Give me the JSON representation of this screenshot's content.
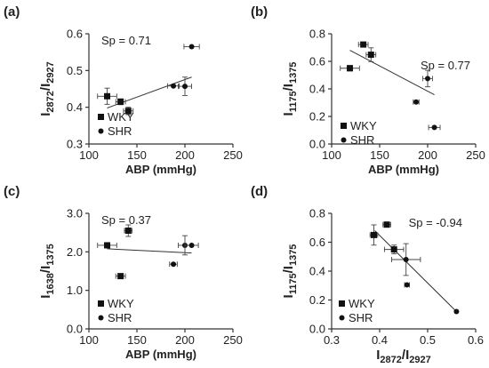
{
  "chart_data": [
    {
      "type": "scatter",
      "panel_label": "(a)",
      "annotation": "Sp = 0.71",
      "xlabel": "ABP (mmHg)",
      "ylabel_main": "I",
      "ylabel_parts": [
        "2872",
        "/I",
        "2927"
      ],
      "xlim": [
        100,
        250
      ],
      "ylim": [
        0.3,
        0.6
      ],
      "xticks": [
        "100",
        "150",
        "200",
        "250"
      ],
      "yticks": [
        "0.3",
        "0.4",
        "0.5",
        "0.6"
      ],
      "xtick_values": [
        100,
        150,
        200,
        250
      ],
      "ytick_values": [
        0.3,
        0.4,
        0.5,
        0.6
      ],
      "legend": [
        "WKY",
        "SHR"
      ],
      "series": [
        {
          "name": "WKY",
          "marker": "square",
          "points": [
            {
              "x": 119,
              "y": 0.43,
              "xerr": 10,
              "yerr": 0.022
            },
            {
              "x": 133,
              "y": 0.415,
              "xerr": 5,
              "yerr": 0.008
            },
            {
              "x": 141,
              "y": 0.39,
              "xerr": 5,
              "yerr": 0.01
            }
          ]
        },
        {
          "name": "SHR",
          "marker": "circle",
          "points": [
            {
              "x": 188,
              "y": 0.458,
              "xerr": 6,
              "yerr": 0
            },
            {
              "x": 200,
              "y": 0.457,
              "xerr": 7,
              "yerr": 0.025
            },
            {
              "x": 207,
              "y": 0.565,
              "xerr": 8,
              "yerr": 0
            }
          ]
        }
      ],
      "trend": [
        [
          119,
          0.398
        ],
        [
          207,
          0.482
        ]
      ]
    },
    {
      "type": "scatter",
      "panel_label": "(b)",
      "annotation": "Sp = 0.77",
      "xlabel": "ABP (mmHg)",
      "ylabel_main": "I",
      "ylabel_parts": [
        "1175",
        "/I",
        "1375"
      ],
      "xlim": [
        100,
        250
      ],
      "ylim": [
        0.0,
        0.8
      ],
      "xticks": [
        "100",
        "150",
        "200",
        "250"
      ],
      "yticks": [
        "0.0",
        "0.2",
        "0.4",
        "0.6",
        "0.8"
      ],
      "xtick_values": [
        100,
        150,
        200,
        250
      ],
      "ytick_values": [
        0.0,
        0.2,
        0.4,
        0.6,
        0.8
      ],
      "legend": [
        "WKY",
        "SHR"
      ],
      "series": [
        {
          "name": "WKY",
          "marker": "square",
          "points": [
            {
              "x": 119,
              "y": 0.55,
              "xerr": 10,
              "yerr": 0.02
            },
            {
              "x": 133,
              "y": 0.722,
              "xerr": 5,
              "yerr": 0.01
            },
            {
              "x": 141,
              "y": 0.648,
              "xerr": 5,
              "yerr": 0.05
            }
          ]
        },
        {
          "name": "SHR",
          "marker": "circle",
          "points": [
            {
              "x": 188,
              "y": 0.305,
              "xerr": 3,
              "yerr": 0
            },
            {
              "x": 200,
              "y": 0.475,
              "xerr": 5,
              "yerr": 0.06
            },
            {
              "x": 207,
              "y": 0.12,
              "xerr": 6,
              "yerr": 0
            }
          ]
        }
      ],
      "trend": [
        [
          119,
          0.68
        ],
        [
          207,
          0.358
        ]
      ]
    },
    {
      "type": "scatter",
      "panel_label": "(c)",
      "annotation": "Sp = 0.37",
      "xlabel": "ABP (mmHg)",
      "ylabel_main": "I",
      "ylabel_parts": [
        "1638",
        "/I",
        "1375"
      ],
      "xlim": [
        100,
        250
      ],
      "ylim": [
        0.0,
        3.0
      ],
      "xticks": [
        "100",
        "150",
        "200",
        "250"
      ],
      "yticks": [
        "0.0",
        "1.0",
        "2.0",
        "3.0"
      ],
      "xtick_values": [
        100,
        150,
        200,
        250
      ],
      "ytick_values": [
        0.0,
        1.0,
        2.0,
        3.0
      ],
      "legend": [
        "WKY",
        "SHR"
      ],
      "series": [
        {
          "name": "WKY",
          "marker": "square",
          "points": [
            {
              "x": 119,
              "y": 2.17,
              "xerr": 10,
              "yerr": 0
            },
            {
              "x": 133,
              "y": 1.37,
              "xerr": 5,
              "yerr": 0
            },
            {
              "x": 141,
              "y": 2.55,
              "xerr": 4,
              "yerr": 0.15
            }
          ]
        },
        {
          "name": "SHR",
          "marker": "circle",
          "points": [
            {
              "x": 188,
              "y": 1.68,
              "xerr": 4,
              "yerr": 0
            },
            {
              "x": 200,
              "y": 2.17,
              "xerr": 7,
              "yerr": 0.25
            },
            {
              "x": 207,
              "y": 2.17,
              "xerr": 7,
              "yerr": 0
            }
          ]
        }
      ],
      "trend": [
        [
          119,
          2.08
        ],
        [
          207,
          1.97
        ]
      ]
    },
    {
      "type": "scatter",
      "panel_label": "(d)",
      "annotation": "Sp = -0.94",
      "xlabel_main": "I",
      "xlabel_parts": [
        "2872",
        "/I",
        "2927"
      ],
      "ylabel_main": "I",
      "ylabel_parts": [
        "1175",
        "/I",
        "1375"
      ],
      "xlim": [
        0.3,
        0.6
      ],
      "ylim": [
        0.0,
        0.8
      ],
      "xticks": [
        "0.3",
        "0.4",
        "0.5",
        "0.6"
      ],
      "yticks": [
        "0.0",
        "0.2",
        "0.4",
        "0.6",
        "0.8"
      ],
      "xtick_values": [
        0.3,
        0.4,
        0.5,
        0.6
      ],
      "ytick_values": [
        0.0,
        0.2,
        0.4,
        0.6,
        0.8
      ],
      "legend": [
        "WKY",
        "SHR"
      ],
      "series": [
        {
          "name": "WKY",
          "marker": "square",
          "points": [
            {
              "x": 0.388,
              "y": 0.65,
              "xerr": 0.008,
              "yerr": 0.07
            },
            {
              "x": 0.415,
              "y": 0.722,
              "xerr": 0.008,
              "yerr": 0.01
            },
            {
              "x": 0.43,
              "y": 0.55,
              "xerr": 0.02,
              "yerr": 0.03
            }
          ]
        },
        {
          "name": "SHR",
          "marker": "circle",
          "points": [
            {
              "x": 0.455,
              "y": 0.48,
              "xerr": 0.03,
              "yerr": 0.11
            },
            {
              "x": 0.457,
              "y": 0.305,
              "xerr": 0.005,
              "yerr": 0
            },
            {
              "x": 0.56,
              "y": 0.12,
              "xerr": 0,
              "yerr": 0
            }
          ]
        }
      ],
      "trend": [
        [
          0.39,
          0.68
        ],
        [
          0.56,
          0.12
        ]
      ]
    }
  ]
}
